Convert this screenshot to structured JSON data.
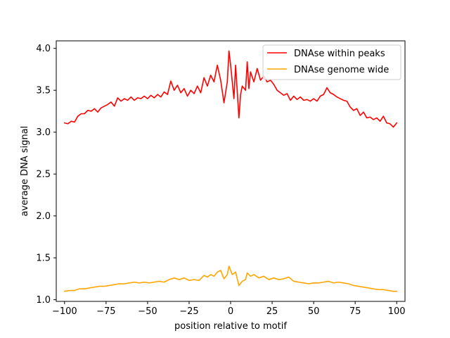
{
  "chart_data": {
    "type": "line",
    "title": "",
    "xlabel": "position relative to motif",
    "ylabel": "average DNA signal",
    "xlim": [
      -105,
      105
    ],
    "ylim": [
      0.98,
      4.09
    ],
    "xticks": [
      -100,
      -75,
      -50,
      -25,
      0,
      25,
      50,
      75,
      100
    ],
    "xtick_labels": [
      "−100",
      "−75",
      "−50",
      "−25",
      "0",
      "25",
      "50",
      "75",
      "100"
    ],
    "yticks": [
      1.0,
      1.5,
      2.0,
      2.5,
      3.0,
      3.5,
      4.0
    ],
    "ytick_labels": [
      "1.0",
      "1.5",
      "2.0",
      "2.5",
      "3.0",
      "3.5",
      "4.0"
    ],
    "grid": false,
    "legend_position": "top-right",
    "series": [
      {
        "name": "DNAse within peaks",
        "color": "#ff0000",
        "points": [
          [
            -100,
            3.11
          ],
          [
            -98,
            3.1
          ],
          [
            -96,
            3.13
          ],
          [
            -94,
            3.12
          ],
          [
            -92,
            3.19
          ],
          [
            -90,
            3.22
          ],
          [
            -88,
            3.22
          ],
          [
            -86,
            3.26
          ],
          [
            -84,
            3.25
          ],
          [
            -82,
            3.28
          ],
          [
            -80,
            3.24
          ],
          [
            -78,
            3.29
          ],
          [
            -76,
            3.31
          ],
          [
            -74,
            3.33
          ],
          [
            -72,
            3.36
          ],
          [
            -70,
            3.31
          ],
          [
            -68,
            3.41
          ],
          [
            -66,
            3.37
          ],
          [
            -64,
            3.4
          ],
          [
            -62,
            3.38
          ],
          [
            -60,
            3.42
          ],
          [
            -58,
            3.38
          ],
          [
            -56,
            3.41
          ],
          [
            -54,
            3.4
          ],
          [
            -52,
            3.43
          ],
          [
            -50,
            3.4
          ],
          [
            -48,
            3.44
          ],
          [
            -46,
            3.41
          ],
          [
            -44,
            3.45
          ],
          [
            -42,
            3.42
          ],
          [
            -40,
            3.48
          ],
          [
            -38,
            3.45
          ],
          [
            -36,
            3.61
          ],
          [
            -34,
            3.5
          ],
          [
            -32,
            3.56
          ],
          [
            -30,
            3.47
          ],
          [
            -28,
            3.52
          ],
          [
            -26,
            3.43
          ],
          [
            -24,
            3.5
          ],
          [
            -22,
            3.46
          ],
          [
            -20,
            3.55
          ],
          [
            -18,
            3.47
          ],
          [
            -16,
            3.65
          ],
          [
            -14,
            3.55
          ],
          [
            -12,
            3.68
          ],
          [
            -10,
            3.6
          ],
          [
            -8,
            3.8
          ],
          [
            -6,
            3.62
          ],
          [
            -4,
            3.35
          ],
          [
            -2,
            3.6
          ],
          [
            -1,
            3.97
          ],
          [
            0,
            3.8
          ],
          [
            2,
            3.4
          ],
          [
            3,
            3.8
          ],
          [
            5,
            3.17
          ],
          [
            6,
            3.45
          ],
          [
            7,
            3.55
          ],
          [
            9,
            3.5
          ],
          [
            10,
            3.84
          ],
          [
            11,
            3.52
          ],
          [
            12,
            3.72
          ],
          [
            14,
            3.6
          ],
          [
            16,
            3.76
          ],
          [
            18,
            3.62
          ],
          [
            20,
            3.67
          ],
          [
            22,
            3.6
          ],
          [
            24,
            3.62
          ],
          [
            26,
            3.57
          ],
          [
            28,
            3.5
          ],
          [
            30,
            3.47
          ],
          [
            32,
            3.44
          ],
          [
            34,
            3.46
          ],
          [
            36,
            3.38
          ],
          [
            38,
            3.43
          ],
          [
            40,
            3.39
          ],
          [
            42,
            3.42
          ],
          [
            44,
            3.38
          ],
          [
            46,
            3.39
          ],
          [
            48,
            3.37
          ],
          [
            50,
            3.4
          ],
          [
            52,
            3.37
          ],
          [
            54,
            3.43
          ],
          [
            56,
            3.45
          ],
          [
            58,
            3.53
          ],
          [
            60,
            3.47
          ],
          [
            62,
            3.45
          ],
          [
            64,
            3.42
          ],
          [
            66,
            3.4
          ],
          [
            68,
            3.38
          ],
          [
            70,
            3.37
          ],
          [
            72,
            3.3
          ],
          [
            74,
            3.26
          ],
          [
            76,
            3.28
          ],
          [
            78,
            3.2
          ],
          [
            80,
            3.24
          ],
          [
            82,
            3.17
          ],
          [
            84,
            3.18
          ],
          [
            86,
            3.15
          ],
          [
            88,
            3.17
          ],
          [
            90,
            3.13
          ],
          [
            92,
            3.19
          ],
          [
            94,
            3.11
          ],
          [
            96,
            3.1
          ],
          [
            98,
            3.06
          ],
          [
            100,
            3.11
          ]
        ]
      },
      {
        "name": "DNAse genome wide",
        "color": "#ffa500",
        "points": [
          [
            -100,
            1.1
          ],
          [
            -97,
            1.11
          ],
          [
            -94,
            1.11
          ],
          [
            -91,
            1.13
          ],
          [
            -88,
            1.13
          ],
          [
            -85,
            1.14
          ],
          [
            -82,
            1.15
          ],
          [
            -79,
            1.16
          ],
          [
            -76,
            1.16
          ],
          [
            -73,
            1.17
          ],
          [
            -70,
            1.18
          ],
          [
            -67,
            1.19
          ],
          [
            -64,
            1.19
          ],
          [
            -61,
            1.2
          ],
          [
            -58,
            1.21
          ],
          [
            -55,
            1.2
          ],
          [
            -52,
            1.21
          ],
          [
            -49,
            1.2
          ],
          [
            -46,
            1.21
          ],
          [
            -43,
            1.22
          ],
          [
            -40,
            1.21
          ],
          [
            -37,
            1.24
          ],
          [
            -34,
            1.26
          ],
          [
            -31,
            1.24
          ],
          [
            -28,
            1.26
          ],
          [
            -25,
            1.23
          ],
          [
            -22,
            1.24
          ],
          [
            -19,
            1.23
          ],
          [
            -16,
            1.29
          ],
          [
            -14,
            1.27
          ],
          [
            -12,
            1.3
          ],
          [
            -10,
            1.28
          ],
          [
            -8,
            1.33
          ],
          [
            -6,
            1.35
          ],
          [
            -4,
            1.25
          ],
          [
            -2,
            1.3
          ],
          [
            -1,
            1.4
          ],
          [
            1,
            1.3
          ],
          [
            3,
            1.33
          ],
          [
            5,
            1.17
          ],
          [
            7,
            1.22
          ],
          [
            9,
            1.24
          ],
          [
            10,
            1.32
          ],
          [
            12,
            1.28
          ],
          [
            14,
            1.3
          ],
          [
            17,
            1.26
          ],
          [
            20,
            1.28
          ],
          [
            23,
            1.24
          ],
          [
            26,
            1.26
          ],
          [
            29,
            1.24
          ],
          [
            32,
            1.25
          ],
          [
            35,
            1.27
          ],
          [
            38,
            1.22
          ],
          [
            41,
            1.21
          ],
          [
            44,
            1.2
          ],
          [
            47,
            1.19
          ],
          [
            50,
            1.2
          ],
          [
            53,
            1.2
          ],
          [
            56,
            1.21
          ],
          [
            59,
            1.22
          ],
          [
            62,
            1.2
          ],
          [
            65,
            1.21
          ],
          [
            68,
            1.2
          ],
          [
            71,
            1.19
          ],
          [
            74,
            1.17
          ],
          [
            77,
            1.16
          ],
          [
            80,
            1.15
          ],
          [
            83,
            1.14
          ],
          [
            86,
            1.13
          ],
          [
            89,
            1.12
          ],
          [
            92,
            1.12
          ],
          [
            95,
            1.11
          ],
          [
            98,
            1.1
          ],
          [
            100,
            1.1
          ]
        ]
      }
    ]
  }
}
